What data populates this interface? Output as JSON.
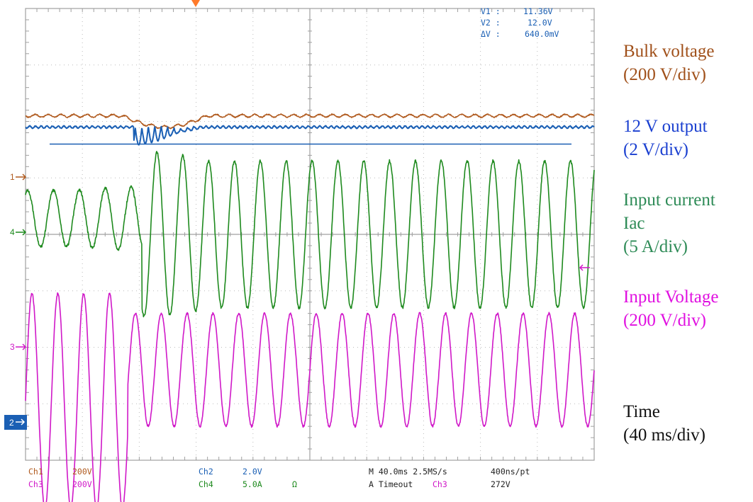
{
  "chart_data": {
    "type": "line",
    "title": "",
    "grid": true,
    "x": {
      "label": "Time",
      "divisions": 10,
      "units_per_div": "40 ms",
      "range_ms": [
        0,
        400
      ]
    },
    "y": {
      "divisions": 8
    },
    "series": [
      {
        "name": "Bulk voltage",
        "scale": "200 V/div",
        "color": "#b05a1e",
        "channel": "Ch1",
        "description_points": {
          "level_div_before": 6.1,
          "dip_div": 0.2,
          "dip_ms": [
            68,
            128
          ]
        }
      },
      {
        "name": "12 V output",
        "scale": "2 V/div",
        "color": "#1a5fb4",
        "channel": "Ch2",
        "description_points": {
          "level_div": 5.9,
          "ripple_dip_div": 0.35,
          "ripple_ms": [
            76,
            124
          ]
        }
      },
      {
        "name": "Input current Iac",
        "scale": "5 A/div",
        "color": "#1e8a1e",
        "channel": "Ch4",
        "description_points": {
          "cycles": 22,
          "amplitude_div_before": 0.5,
          "amplitude_div_after": 1.3,
          "step_ms": 82
        }
      },
      {
        "name": "Input Voltage",
        "scale": "200 V/div",
        "color": "#d018c8",
        "channel": "Ch3",
        "description_points": {
          "cycles": 22,
          "amplitude_div_before": 1.9,
          "amplitude_div_after": 1.0,
          "step_ms": 72
        }
      }
    ]
  },
  "legend": [
    {
      "lines": [
        "Bulk voltage",
        "(200 V/div)"
      ],
      "color": "#a0501a"
    },
    {
      "lines": [
        "12 V output",
        "(2 V/div)"
      ],
      "color": "#1a3fd0"
    },
    {
      "lines": [
        "Input current",
        "Iac",
        "(5 A/div)"
      ],
      "color": "#2e8b57"
    },
    {
      "lines": [
        "Input Voltage",
        "(200 V/div)"
      ],
      "color": "#e010e0"
    },
    {
      "lines": [
        "Time",
        "(40 ms/div)"
      ],
      "color": "#111111"
    }
  ],
  "cursor_readout": {
    "v1": "V1 :",
    "v1_val": "11.36V",
    "v2": "V2 :",
    "v2_val": "12.0V",
    "dv": "ΔV :",
    "dv_val": "640.0mV"
  },
  "channel_markers": {
    "ch1": "1",
    "ch4": "4",
    "ch3": "3",
    "ch2": "2"
  },
  "status_bar": {
    "ch1": "Ch1",
    "ch1_scale": "200V",
    "ch3": "Ch3",
    "ch3_scale": "200V",
    "ch2": "Ch2",
    "ch2_scale": "2.0V",
    "ch4": "Ch4",
    "ch4_scale": "5.0A",
    "ohm": "Ω",
    "timebase": "M 40.0ms 2.5MS/s",
    "record": "400ns/pt",
    "trigger": "A  Timeout",
    "trig_ch": "Ch3",
    "trig_level": "272V"
  }
}
